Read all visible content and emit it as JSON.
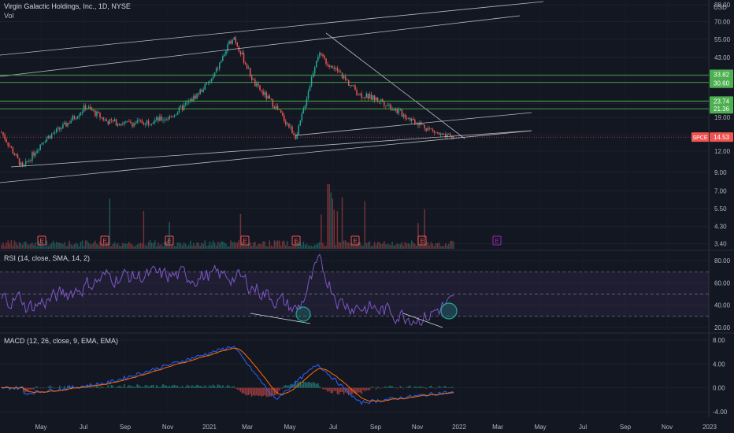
{
  "header": {
    "title": "Virgin Galactic Holdings, Inc., 1D, NYSE",
    "vol_label": "Vol",
    "currency": "USD"
  },
  "colors": {
    "background": "#131722",
    "up": "#26a69a",
    "down": "#ef5350",
    "channel_line": "#d1d4dc",
    "support_line": "#4caf50",
    "rsi_line": "#7e57c2",
    "macd_line": "#2962ff",
    "signal_line": "#ff6d00",
    "earnings_badge": "#ef5350",
    "future_earnings_badge": "#9c27b0",
    "highlight_circle": "#26a69a"
  },
  "earnings_badge_label": "E",
  "price_panel": {
    "scale": "log",
    "y_ticks": [
      "88.00",
      "70.00",
      "55.00",
      "43.00",
      "33.00",
      "23.00",
      "19.00",
      "15.00",
      "12.00",
      "9.00",
      "7.00",
      "5.50",
      "4.30",
      "3.40"
    ],
    "badges": [
      {
        "label": "33.82",
        "value": 33.82,
        "color": "#4caf50"
      },
      {
        "label": "30.60",
        "value": 30.6,
        "color": "#4caf50"
      },
      {
        "label": "23.74",
        "value": 23.74,
        "color": "#4caf50"
      },
      {
        "label": "21.36",
        "value": 21.36,
        "color": "#4caf50"
      },
      {
        "label": "14.53",
        "value": 14.53,
        "color": "#ef5350"
      }
    ],
    "symbol_tag": "SPCE",
    "last_price": 14.53
  },
  "rsi_panel": {
    "label": "RSI (14, close, SMA, 14, 2)",
    "y_ticks": [
      "80.00",
      "60.00",
      "40.00",
      "20.00"
    ],
    "band_upper": 70,
    "band_middle": 50,
    "band_lower": 30
  },
  "macd_panel": {
    "label": "MACD (12, 26, close, 9, EMA, EMA)",
    "y_ticks": [
      "8.00",
      "4.00",
      "0.00",
      "-4.00"
    ]
  },
  "x_axis": {
    "labels": [
      "May",
      "Jul",
      "Sep",
      "Nov",
      "2021",
      "Mar",
      "May",
      "Jul",
      "Sep",
      "Nov",
      "2022",
      "Mar",
      "May",
      "Jul",
      "Sep",
      "Nov",
      "2023"
    ]
  },
  "chart_data": {
    "type": "candlestick",
    "symbol": "SPCE",
    "x_range": [
      "2020-03",
      "2022-12"
    ],
    "key_price_points": [
      {
        "date": "2020-03",
        "close": 15.5
      },
      {
        "date": "2020-04",
        "close": 9.5
      },
      {
        "date": "2020-05",
        "close": 14.0
      },
      {
        "date": "2020-06",
        "close": 17.0
      },
      {
        "date": "2020-07",
        "close": 22.0
      },
      {
        "date": "2020-08",
        "close": 18.0
      },
      {
        "date": "2020-09",
        "close": 17.5
      },
      {
        "date": "2020-10",
        "close": 18.0
      },
      {
        "date": "2020-11",
        "close": 19.0
      },
      {
        "date": "2020-12",
        "close": 24.0
      },
      {
        "date": "2021-01",
        "close": 32.0
      },
      {
        "date": "2021-02",
        "close": 58.0
      },
      {
        "date": "2021-03",
        "close": 30.0
      },
      {
        "date": "2021-04",
        "close": 22.0
      },
      {
        "date": "2021-05",
        "close": 14.5
      },
      {
        "date": "2021-06",
        "close": 45.0
      },
      {
        "date": "2021-07",
        "close": 35.0
      },
      {
        "date": "2021-08",
        "close": 26.0
      },
      {
        "date": "2021-09",
        "close": 24.0
      },
      {
        "date": "2021-10",
        "close": 20.0
      },
      {
        "date": "2021-11",
        "close": 17.0
      },
      {
        "date": "2021-12",
        "close": 14.53
      }
    ],
    "horizontal_levels": [
      33.82,
      30.6,
      23.74,
      21.36
    ],
    "rsi": {
      "bands": [
        30,
        50,
        70
      ],
      "key_points": [
        {
          "date": "2020-04",
          "value": 32
        },
        {
          "date": "2020-08",
          "value": 72
        },
        {
          "date": "2021-02",
          "value": 72
        },
        {
          "date": "2021-05",
          "value": 30
        },
        {
          "date": "2021-06",
          "value": 88
        },
        {
          "date": "2021-07",
          "value": 40
        },
        {
          "date": "2021-11",
          "value": 22
        },
        {
          "date": "2021-12",
          "value": 38
        }
      ]
    },
    "macd": {
      "key_points": [
        {
          "date": "2020-04",
          "macd": -1.0
        },
        {
          "date": "2020-08",
          "macd": 0.8
        },
        {
          "date": "2021-02",
          "macd": 7.0
        },
        {
          "date": "2021-04",
          "macd": -2.0
        },
        {
          "date": "2021-06",
          "macd": 4.0
        },
        {
          "date": "2021-08",
          "macd": -2.5
        },
        {
          "date": "2021-12",
          "macd": -0.8
        }
      ]
    }
  }
}
